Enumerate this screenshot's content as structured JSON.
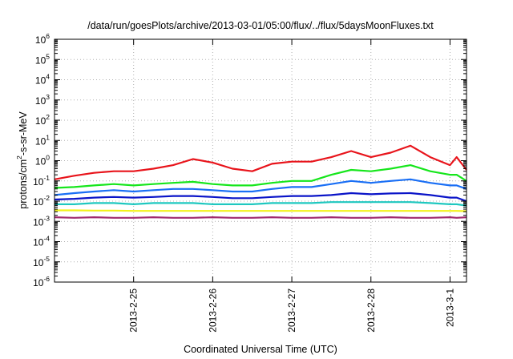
{
  "chart_data": {
    "type": "line",
    "title": "/data/run/goesPlots/archive/2013-03-01/05:00/flux/../flux/5daysMoonFluxes.txt",
    "xlabel": "Coordinated Universal Time (UTC)",
    "ylabel_parts": [
      "protons/cm",
      "2",
      "-s-sr-MeV"
    ],
    "x_start": "2013-02-24 00:00",
    "x_end": "2013-03-01 05:00",
    "x_ticks": [
      {
        "date": "2013-02-25",
        "label": "2013-2-25"
      },
      {
        "date": "2013-02-26",
        "label": "2013-2-26"
      },
      {
        "date": "2013-02-27",
        "label": "2013-2-27"
      },
      {
        "date": "2013-02-28",
        "label": "2013-2-28"
      },
      {
        "date": "2013-03-01",
        "label": "2013-3-1"
      }
    ],
    "y_scale": "log",
    "ylim": [
      1e-06,
      1000000.0
    ],
    "y_ticks": [
      {
        "base": "10",
        "exp": "6"
      },
      {
        "base": "10",
        "exp": "5"
      },
      {
        "base": "10",
        "exp": "4"
      },
      {
        "base": "10",
        "exp": "3"
      },
      {
        "base": "10",
        "exp": "2"
      },
      {
        "base": "10",
        "exp": "1"
      },
      {
        "base": "10",
        "exp": "0"
      },
      {
        "base": "10",
        "exp": "-1"
      },
      {
        "base": "10",
        "exp": "-2"
      },
      {
        "base": "10",
        "exp": "-3"
      },
      {
        "base": "10",
        "exp": "-4"
      },
      {
        "base": "10",
        "exp": "-5"
      },
      {
        "base": "10",
        "exp": "-6"
      }
    ],
    "grid": true,
    "series": [
      {
        "color": "#e8141b",
        "x": [
          "2013-02-24 00:00",
          "2013-02-24 06:00",
          "2013-02-24 12:00",
          "2013-02-24 18:00",
          "2013-02-25 00:00",
          "2013-02-25 06:00",
          "2013-02-25 12:00",
          "2013-02-25 18:00",
          "2013-02-26 00:00",
          "2013-02-26 06:00",
          "2013-02-26 12:00",
          "2013-02-26 18:00",
          "2013-02-27 00:00",
          "2013-02-27 06:00",
          "2013-02-27 12:00",
          "2013-02-27 18:00",
          "2013-02-28 00:00",
          "2013-02-28 06:00",
          "2013-02-28 12:00",
          "2013-02-28 18:00",
          "2013-03-01 00:00",
          "2013-03-01 02:00",
          "2013-03-01 05:00"
        ],
        "y": [
          0.12,
          0.18,
          0.25,
          0.3,
          0.3,
          0.4,
          0.6,
          1.2,
          0.8,
          0.4,
          0.3,
          0.7,
          0.9,
          0.9,
          1.5,
          3.0,
          1.5,
          2.5,
          5.5,
          1.5,
          0.6,
          1.5,
          0.35
        ]
      },
      {
        "color": "#16e61c",
        "x": [
          "2013-02-24 00:00",
          "2013-02-24 06:00",
          "2013-02-24 12:00",
          "2013-02-24 18:00",
          "2013-02-25 00:00",
          "2013-02-25 06:00",
          "2013-02-25 12:00",
          "2013-02-25 18:00",
          "2013-02-26 00:00",
          "2013-02-26 06:00",
          "2013-02-26 12:00",
          "2013-02-26 18:00",
          "2013-02-27 00:00",
          "2013-02-27 06:00",
          "2013-02-27 12:00",
          "2013-02-27 18:00",
          "2013-02-28 00:00",
          "2013-02-28 06:00",
          "2013-02-28 12:00",
          "2013-02-28 18:00",
          "2013-03-01 00:00",
          "2013-03-01 02:00",
          "2013-03-01 05:00"
        ],
        "y": [
          0.045,
          0.05,
          0.06,
          0.07,
          0.06,
          0.07,
          0.08,
          0.09,
          0.07,
          0.06,
          0.06,
          0.08,
          0.1,
          0.1,
          0.2,
          0.35,
          0.3,
          0.4,
          0.6,
          0.3,
          0.2,
          0.2,
          0.1
        ]
      },
      {
        "color": "#1a6ff5",
        "x": [
          "2013-02-24 00:00",
          "2013-02-24 06:00",
          "2013-02-24 12:00",
          "2013-02-24 18:00",
          "2013-02-25 00:00",
          "2013-02-25 06:00",
          "2013-02-25 12:00",
          "2013-02-25 18:00",
          "2013-02-26 00:00",
          "2013-02-26 06:00",
          "2013-02-26 12:00",
          "2013-02-26 18:00",
          "2013-02-27 00:00",
          "2013-02-27 06:00",
          "2013-02-27 12:00",
          "2013-02-27 18:00",
          "2013-02-28 00:00",
          "2013-02-28 06:00",
          "2013-02-28 12:00",
          "2013-02-28 18:00",
          "2013-03-01 00:00",
          "2013-03-01 02:00",
          "2013-03-01 05:00"
        ],
        "y": [
          0.02,
          0.025,
          0.03,
          0.035,
          0.03,
          0.035,
          0.04,
          0.04,
          0.035,
          0.03,
          0.03,
          0.04,
          0.05,
          0.05,
          0.07,
          0.1,
          0.08,
          0.1,
          0.12,
          0.08,
          0.06,
          0.06,
          0.04
        ]
      },
      {
        "color": "#0a14c8",
        "x": [
          "2013-02-24 00:00",
          "2013-02-24 06:00",
          "2013-02-24 12:00",
          "2013-02-24 18:00",
          "2013-02-25 00:00",
          "2013-02-25 06:00",
          "2013-02-25 12:00",
          "2013-02-25 18:00",
          "2013-02-26 00:00",
          "2013-02-26 06:00",
          "2013-02-26 12:00",
          "2013-02-26 18:00",
          "2013-02-27 00:00",
          "2013-02-27 06:00",
          "2013-02-27 12:00",
          "2013-02-27 18:00",
          "2013-02-28 00:00",
          "2013-02-28 06:00",
          "2013-02-28 12:00",
          "2013-02-28 18:00",
          "2013-03-01 00:00",
          "2013-03-01 02:00",
          "2013-03-01 05:00"
        ],
        "y": [
          0.012,
          0.013,
          0.015,
          0.016,
          0.015,
          0.016,
          0.018,
          0.018,
          0.016,
          0.014,
          0.014,
          0.016,
          0.018,
          0.018,
          0.02,
          0.025,
          0.022,
          0.024,
          0.025,
          0.02,
          0.015,
          0.015,
          0.01
        ]
      },
      {
        "color": "#1fc8c0",
        "x": [
          "2013-02-24 00:00",
          "2013-02-24 06:00",
          "2013-02-24 12:00",
          "2013-02-24 18:00",
          "2013-02-25 00:00",
          "2013-02-25 06:00",
          "2013-02-25 12:00",
          "2013-02-25 18:00",
          "2013-02-26 00:00",
          "2013-02-26 06:00",
          "2013-02-26 12:00",
          "2013-02-26 18:00",
          "2013-02-27 00:00",
          "2013-02-27 06:00",
          "2013-02-27 12:00",
          "2013-02-27 18:00",
          "2013-02-28 00:00",
          "2013-02-28 06:00",
          "2013-02-28 12:00",
          "2013-02-28 18:00",
          "2013-03-01 00:00",
          "2013-03-01 02:00",
          "2013-03-01 05:00"
        ],
        "y": [
          0.007,
          0.007,
          0.008,
          0.008,
          0.007,
          0.008,
          0.008,
          0.008,
          0.007,
          0.007,
          0.007,
          0.008,
          0.008,
          0.008,
          0.009,
          0.009,
          0.009,
          0.009,
          0.009,
          0.008,
          0.007,
          0.007,
          0.006
        ]
      },
      {
        "color": "#f2f21a",
        "x": [
          "2013-02-24 00:00",
          "2013-02-24 06:00",
          "2013-02-24 12:00",
          "2013-02-24 18:00",
          "2013-02-25 00:00",
          "2013-02-25 06:00",
          "2013-02-25 12:00",
          "2013-02-25 18:00",
          "2013-02-26 00:00",
          "2013-02-26 06:00",
          "2013-02-26 12:00",
          "2013-02-26 18:00",
          "2013-02-27 00:00",
          "2013-02-27 06:00",
          "2013-02-27 12:00",
          "2013-02-27 18:00",
          "2013-02-28 00:00",
          "2013-02-28 06:00",
          "2013-02-28 12:00",
          "2013-02-28 18:00",
          "2013-03-01 00:00",
          "2013-03-01 02:00",
          "2013-03-01 05:00"
        ],
        "y": [
          0.0035,
          0.0035,
          0.0034,
          0.0034,
          0.0033,
          0.0033,
          0.0033,
          0.0033,
          0.0033,
          0.0033,
          0.0033,
          0.0033,
          0.0033,
          0.0033,
          0.0033,
          0.0033,
          0.0033,
          0.0033,
          0.0033,
          0.0033,
          0.0033,
          0.0033,
          0.0032
        ]
      },
      {
        "color": "#a02a6e",
        "x": [
          "2013-02-24 00:00",
          "2013-02-24 06:00",
          "2013-02-24 12:00",
          "2013-02-24 18:00",
          "2013-02-25 00:00",
          "2013-02-25 06:00",
          "2013-02-25 12:00",
          "2013-02-25 18:00",
          "2013-02-26 00:00",
          "2013-02-26 06:00",
          "2013-02-26 12:00",
          "2013-02-26 18:00",
          "2013-02-27 00:00",
          "2013-02-27 06:00",
          "2013-02-27 12:00",
          "2013-02-27 18:00",
          "2013-02-28 00:00",
          "2013-02-28 06:00",
          "2013-02-28 12:00",
          "2013-02-28 18:00",
          "2013-03-01 00:00",
          "2013-03-01 02:00",
          "2013-03-01 05:00"
        ],
        "y": [
          0.0016,
          0.0015,
          0.0016,
          0.0015,
          0.0015,
          0.0016,
          0.0015,
          0.0015,
          0.0016,
          0.0015,
          0.0015,
          0.0016,
          0.0015,
          0.0015,
          0.0016,
          0.0015,
          0.0015,
          0.0016,
          0.0015,
          0.0015,
          0.0016,
          0.0015,
          0.0016
        ]
      }
    ]
  }
}
